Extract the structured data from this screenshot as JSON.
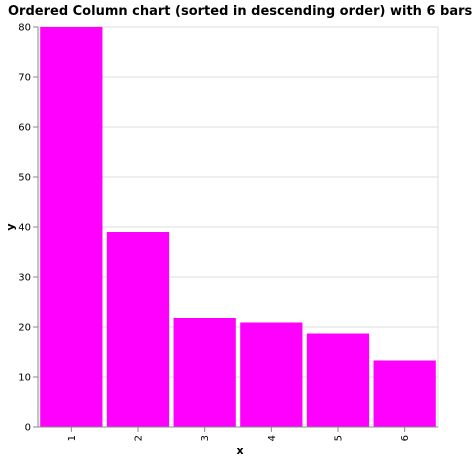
{
  "chart_data": {
    "type": "bar",
    "title": "Ordered Column chart (sorted in descending order) with 6 bars",
    "xlabel": "x",
    "ylabel": "y",
    "categories": [
      "1",
      "2",
      "3",
      "4",
      "5",
      "6"
    ],
    "values": [
      80,
      39,
      21.8,
      20.9,
      18.7,
      13.3
    ],
    "ylim": [
      0,
      80
    ],
    "yticks": [
      "0",
      "10",
      "20",
      "30",
      "40",
      "50",
      "60",
      "70",
      "80"
    ],
    "grid": true,
    "bar_color": "#ff00ff"
  }
}
